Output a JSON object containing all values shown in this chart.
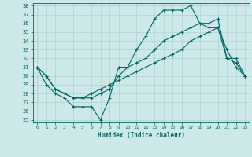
{
  "xlabel": "Humidex (Indice chaleur)",
  "bg_color": "#cce8e8",
  "grid_color": "#b0d0d0",
  "line_color": "#006666",
  "spine_color": "#006666",
  "ylim": [
    25,
    38
  ],
  "xlim": [
    -0.5,
    23.5
  ],
  "yticks": [
    25,
    26,
    27,
    28,
    29,
    30,
    31,
    32,
    33,
    34,
    35,
    36,
    37,
    38
  ],
  "xticks": [
    0,
    1,
    2,
    3,
    4,
    5,
    6,
    7,
    8,
    9,
    10,
    11,
    12,
    13,
    14,
    15,
    16,
    17,
    18,
    19,
    20,
    21,
    22,
    23
  ],
  "line1_x": [
    0,
    1,
    2,
    3,
    4,
    5,
    6,
    7,
    8,
    9,
    10,
    11,
    12,
    13,
    14,
    15,
    16,
    17,
    18,
    19,
    20,
    21,
    22,
    23
  ],
  "line1_y": [
    31,
    29,
    28,
    27.5,
    26.5,
    26.5,
    26.5,
    25,
    27.5,
    31,
    31,
    33,
    34.5,
    36.5,
    37.5,
    37.5,
    37.5,
    38,
    36,
    35.5,
    35.5,
    32,
    32,
    30
  ],
  "line2_x": [
    0,
    1,
    2,
    3,
    4,
    5,
    6,
    7,
    8,
    9,
    10,
    11,
    12,
    13,
    14,
    15,
    16,
    17,
    18,
    19,
    20,
    21,
    22,
    23
  ],
  "line2_y": [
    31,
    30,
    28.5,
    28,
    27.5,
    27.5,
    27.5,
    28,
    28.5,
    30,
    31,
    31.5,
    32,
    33,
    34,
    34.5,
    35,
    35.5,
    36,
    36,
    36.5,
    32,
    31.5,
    30
  ],
  "line3_x": [
    0,
    1,
    2,
    3,
    4,
    5,
    6,
    7,
    8,
    9,
    10,
    11,
    12,
    13,
    14,
    15,
    16,
    17,
    18,
    19,
    20,
    21,
    22,
    23
  ],
  "line3_y": [
    31,
    30,
    28.5,
    28,
    27.5,
    27.5,
    28,
    28.5,
    29,
    29.5,
    30,
    30.5,
    31,
    31.5,
    32,
    32.5,
    33,
    34,
    34.5,
    35,
    35.5,
    33,
    31,
    30
  ]
}
